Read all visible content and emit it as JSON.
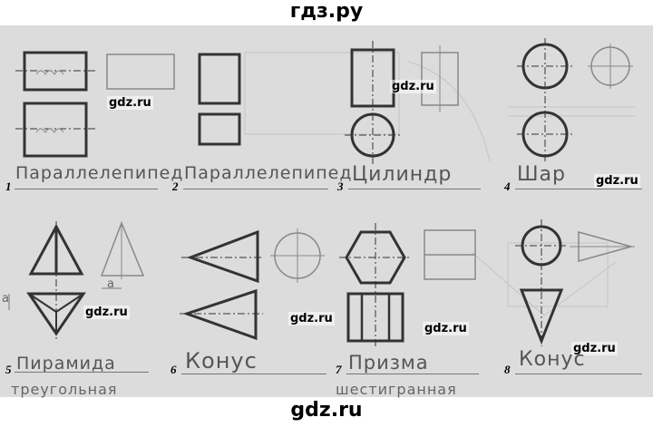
{
  "site": {
    "header": "гдз.ру",
    "footer": "gdz.ru"
  },
  "watermarks": [
    "gdz.ru",
    "gdz.ru",
    "gdz.ru",
    "gdz.ru",
    "gdz.ru",
    "gdz.ru",
    "gdz.ru"
  ],
  "items": [
    {
      "number": "1",
      "answer": "Параллелепипед",
      "extra": ""
    },
    {
      "number": "2",
      "answer": "Параллелепипед",
      "extra": ""
    },
    {
      "number": "3",
      "answer": "Цилиндр",
      "extra": ""
    },
    {
      "number": "4",
      "answer": "Шар",
      "extra": ""
    },
    {
      "number": "5",
      "answer": "Пирамида",
      "extra": "треугольная"
    },
    {
      "number": "6",
      "answer": "Конус",
      "extra": ""
    },
    {
      "number": "7",
      "answer": "Призма",
      "extra": "шестигранная"
    },
    {
      "number": "8",
      "answer": "Конус",
      "extra": ""
    }
  ],
  "sketch_labels": {
    "a_side": "a",
    "a_bottom": "a"
  }
}
